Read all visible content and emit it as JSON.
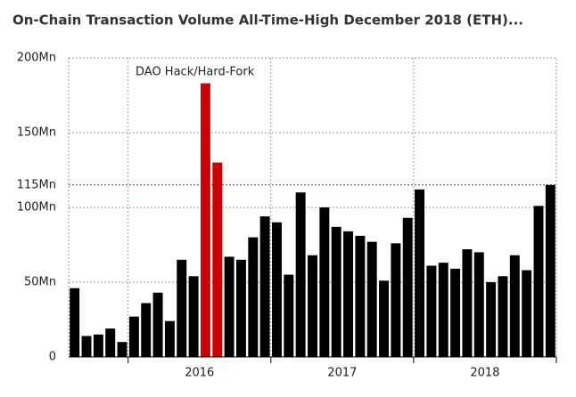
{
  "chart_data": {
    "type": "bar",
    "title": "On-Chain Transaction Volume All-Time-High December 2018 (ETH)...",
    "categories": [
      null,
      null,
      null,
      null,
      null,
      "2016",
      "2016",
      "2016",
      "2016",
      "2016",
      "2016",
      "2016",
      "2016",
      "2016",
      "2016",
      "2016",
      "2016",
      "2017",
      "2017",
      "2017",
      "2017",
      "2017",
      "2017",
      "2017",
      "2017",
      "2017",
      "2017",
      "2017",
      "2017",
      "2018",
      "2018",
      "2018",
      "2018",
      "2018",
      "2018",
      "2018",
      "2018",
      "2018",
      "2018",
      "2018",
      "2018"
    ],
    "values": [
      46,
      14,
      15,
      19,
      10,
      27,
      36,
      43,
      24,
      65,
      54,
      183,
      130,
      67,
      65,
      80,
      94,
      90,
      55,
      110,
      68,
      100,
      87,
      84,
      81,
      77,
      51,
      76,
      93,
      112,
      61,
      63,
      59,
      72,
      70,
      50,
      54,
      68,
      58,
      101,
      115
    ],
    "colors": [
      "#000000",
      "#000000",
      "#000000",
      "#000000",
      "#000000",
      "#000000",
      "#000000",
      "#000000",
      "#000000",
      "#000000",
      "#000000",
      "#cc0000",
      "#cc0000",
      "#000000",
      "#000000",
      "#000000",
      "#000000",
      "#000000",
      "#000000",
      "#000000",
      "#000000",
      "#000000",
      "#000000",
      "#000000",
      "#000000",
      "#000000",
      "#000000",
      "#000000",
      "#000000",
      "#000000",
      "#000000",
      "#000000",
      "#000000",
      "#000000",
      "#000000",
      "#000000",
      "#000000",
      "#000000",
      "#000000",
      "#000000",
      "#000000"
    ],
    "ylim": [
      0,
      200
    ],
    "yticks": [
      0,
      {
        "value": 50,
        "label": "50Mn"
      },
      {
        "value": 100,
        "label": "100Mn"
      },
      {
        "value": 150,
        "label": "150Mn"
      },
      {
        "value": 200,
        "label": "200Mn"
      }
    ],
    "reference_line": {
      "value": 115,
      "label": "115Mn",
      "color": "#cc0000"
    },
    "annotation": "DAO Hack/Hard-Fork",
    "grid": true
  }
}
